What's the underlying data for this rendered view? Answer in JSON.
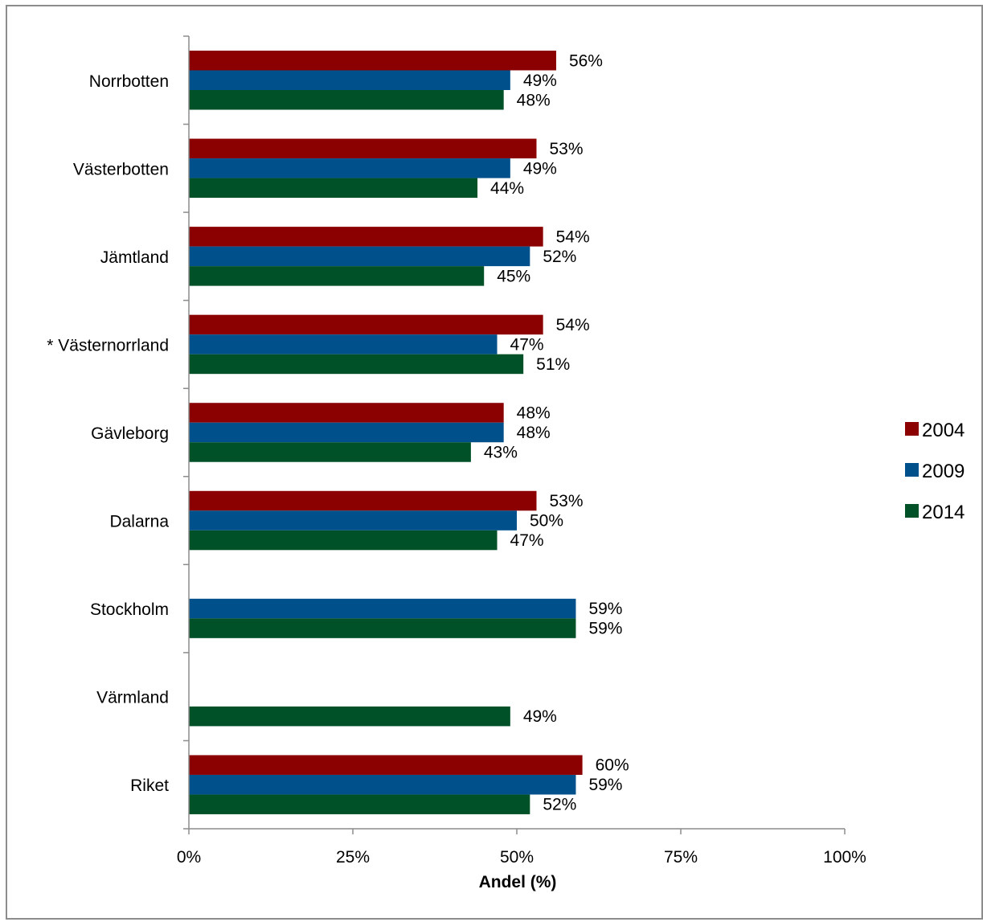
{
  "chart_data": {
    "type": "bar",
    "orientation": "horizontal",
    "title": "",
    "xlabel": "Andel (%)",
    "ylabel": "",
    "xlim": [
      0,
      100
    ],
    "x_ticks": [
      "0%",
      "25%",
      "50%",
      "75%",
      "100%"
    ],
    "grid": false,
    "legend_position": "right",
    "categories": [
      "Norrbotten",
      "Västerbotten",
      "Jämtland",
      "* Västernorrland",
      "Gävleborg",
      "Dalarna",
      "Stockholm",
      "Värmland",
      "Riket"
    ],
    "series": [
      {
        "name": "2004",
        "color": "#8b0000",
        "values": [
          56,
          53,
          54,
          54,
          48,
          53,
          null,
          null,
          60
        ]
      },
      {
        "name": "2009",
        "color": "#00508c",
        "values": [
          49,
          49,
          52,
          47,
          48,
          50,
          59,
          null,
          59
        ]
      },
      {
        "name": "2014",
        "color": "#005028",
        "values": [
          48,
          44,
          45,
          51,
          43,
          47,
          59,
          49,
          52
        ]
      }
    ],
    "value_suffix": "%"
  }
}
